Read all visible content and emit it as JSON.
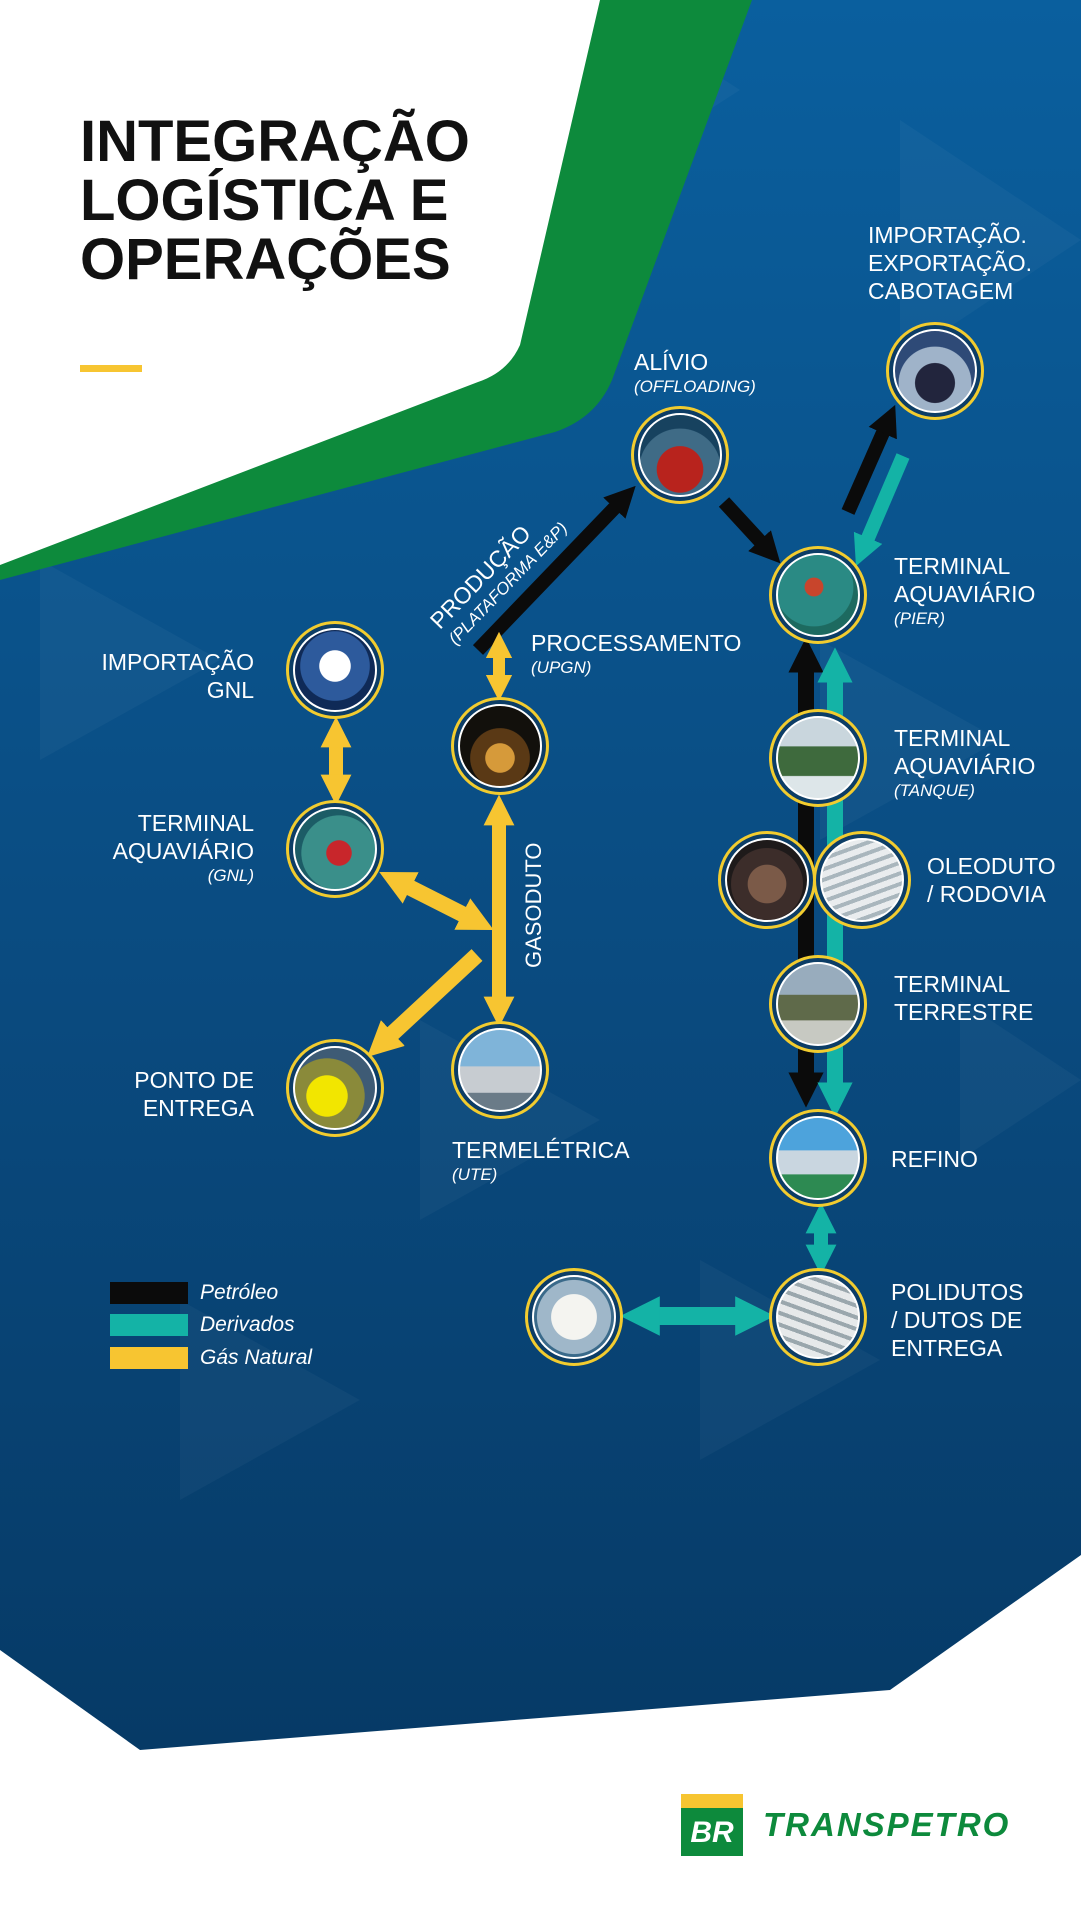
{
  "title": {
    "lines": [
      "INTEGRAÇÃO",
      "LOGÍSTICA E",
      "OPERAÇÕES"
    ]
  },
  "colors": {
    "petroleo": "#0b0b0b",
    "derivados": "#14b3a6",
    "gas_natural": "#f7c531",
    "background_blue": "#0a4f86",
    "brand_green": "#0d8a3c",
    "node_ring": "#f2cc2f"
  },
  "labels": {
    "importacao_exportacao": [
      "IMPORTAÇÃO.",
      "EXPORTAÇÃO.",
      "CABOTAGEM"
    ],
    "alivio": {
      "title": "ALÍVIO",
      "sub": "(OFFLOADING)"
    },
    "producao": {
      "title": "PRODUÇÃO",
      "sub": "(PLATAFORMA E&P)"
    },
    "processamento": {
      "title": "PROCESSAMENTO",
      "sub": "(UPGN)"
    },
    "terminal_pier": {
      "title": [
        "TERMINAL",
        "AQUAVIÁRIO"
      ],
      "sub": "(PIER)"
    },
    "importacao_gnl": [
      "IMPORTAÇÃO",
      "GNL"
    ],
    "terminal_gnl": {
      "title": [
        "TERMINAL",
        "AQUAVIÁRIO"
      ],
      "sub": "(GNL)"
    },
    "gasoduto": "GASODUTO",
    "terminal_tanque": {
      "title": [
        "TERMINAL",
        "AQUAVIÁRIO"
      ],
      "sub": "(TANQUE)"
    },
    "oleoduto_rodovia": [
      "OLEODUTO",
      "/ RODOVIA"
    ],
    "terminal_terrestre": [
      "TERMINAL",
      "TERRESTRE"
    ],
    "ponto_entrega": [
      "PONTO DE",
      "ENTREGA"
    ],
    "termeletrica": {
      "title": "TERMELÉTRICA",
      "sub": "(UTE)"
    },
    "refino": "REFINO",
    "polidutos": [
      "POLIDUTOS",
      "/ DUTOS DE",
      "ENTREGA"
    ]
  },
  "nodes": [
    {
      "id": "ship-export",
      "photo": "ship"
    },
    {
      "id": "tanker-offloading",
      "photo": "tanker"
    },
    {
      "id": "terminal-pier",
      "photo": "pier"
    },
    {
      "id": "lng-carrier",
      "photo": "lng-ship"
    },
    {
      "id": "upgn-plant",
      "photo": "refinery-night"
    },
    {
      "id": "terminal-gnl",
      "photo": "lng-terminal"
    },
    {
      "id": "terminal-tanque",
      "photo": "tanks"
    },
    {
      "id": "truck",
      "photo": "truck"
    },
    {
      "id": "pipeline",
      "photo": "pipeline"
    },
    {
      "id": "terminal-terrestre",
      "photo": "land-terminal"
    },
    {
      "id": "ponto-entrega",
      "photo": "gas-pipe"
    },
    {
      "id": "termeletrica",
      "photo": "power-plant"
    },
    {
      "id": "refino",
      "photo": "refinery"
    },
    {
      "id": "storage-tank",
      "photo": "storage"
    },
    {
      "id": "polidutos",
      "photo": "pipes"
    }
  ],
  "legend": [
    {
      "label": "Petróleo",
      "color": "#0b0b0b"
    },
    {
      "label": "Derivados",
      "color": "#14b3a6"
    },
    {
      "label": "Gás Natural",
      "color": "#f7c531"
    }
  ],
  "brand": {
    "mark": "BR",
    "name": "TRANSPETRO"
  }
}
